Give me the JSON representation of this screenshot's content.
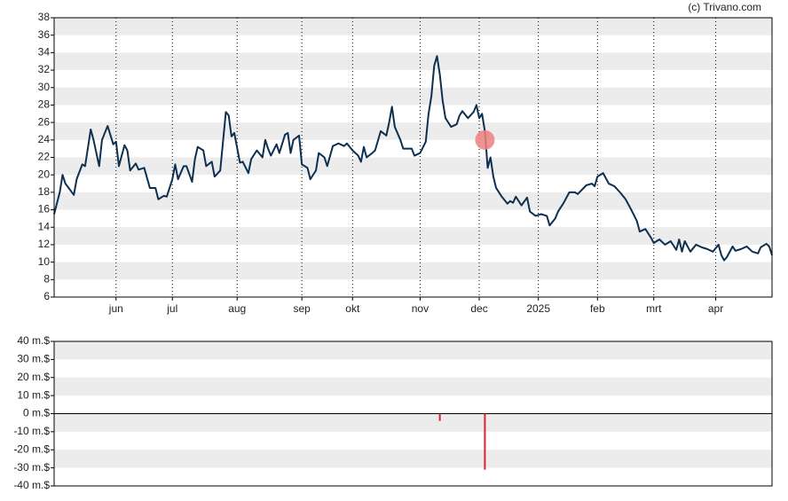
{
  "credit": "(c) Trivano.com",
  "chart_data": [
    {
      "type": "line",
      "grid": "bands",
      "xlim": [
        0,
        255
      ],
      "xticks": [
        {
          "value": 22,
          "label": "jun"
        },
        {
          "value": 42,
          "label": "jul"
        },
        {
          "value": 65,
          "label": "aug"
        },
        {
          "value": 88,
          "label": "sep"
        },
        {
          "value": 106,
          "label": "okt"
        },
        {
          "value": 130,
          "label": "nov"
        },
        {
          "value": 151,
          "label": "dec"
        },
        {
          "value": 172,
          "label": "2025"
        },
        {
          "value": 193,
          "label": "feb"
        },
        {
          "value": 213,
          "label": "mrt"
        },
        {
          "value": 235,
          "label": "apr"
        }
      ],
      "ylim": [
        6,
        38
      ],
      "yticks": [
        6,
        8,
        10,
        12,
        14,
        16,
        18,
        20,
        22,
        24,
        26,
        28,
        30,
        32,
        34,
        36,
        38
      ],
      "series": [
        {
          "color": "#0d3050",
          "x": [
            0,
            2,
            3,
            4,
            7,
            8,
            10,
            11,
            13,
            14,
            16,
            17,
            19,
            21,
            22,
            23,
            25,
            26,
            27,
            29,
            30,
            32,
            34,
            36,
            37,
            39,
            40,
            42,
            43,
            44,
            46,
            47,
            49,
            50,
            51,
            53,
            54,
            56,
            57,
            59,
            61,
            62,
            63,
            64,
            66,
            67,
            69,
            70,
            72,
            74,
            75,
            76,
            77,
            79,
            80,
            82,
            83,
            84,
            85,
            87,
            88,
            90,
            91,
            93,
            94,
            96,
            97,
            99,
            101,
            103,
            104,
            106,
            108,
            109,
            110,
            111,
            113,
            114,
            116,
            118,
            119,
            120,
            121,
            123,
            124,
            127,
            128,
            130,
            132,
            133,
            134,
            135,
            136,
            137,
            138,
            139,
            140,
            141,
            143,
            144,
            145,
            147,
            149,
            150,
            151,
            152,
            153,
            154,
            155,
            156,
            157,
            159,
            161,
            162,
            163,
            164,
            166,
            168,
            169,
            171,
            173,
            175,
            176,
            178,
            179,
            181,
            183,
            185,
            186,
            189,
            191,
            192,
            193,
            195,
            197,
            199,
            201,
            203,
            205,
            207,
            208,
            210,
            212,
            213,
            215,
            217,
            219,
            221,
            222,
            223,
            224,
            226,
            228,
            230,
            232,
            234,
            236,
            237,
            238,
            239,
            241,
            242,
            244,
            246,
            248,
            250,
            251,
            253,
            254,
            255
          ],
          "values": [
            15.5,
            18,
            20,
            19,
            17.7,
            19.5,
            21.2,
            21,
            25.2,
            24,
            21,
            24,
            25.6,
            23.5,
            23.8,
            21,
            23.4,
            22.8,
            20.5,
            21.3,
            20.6,
            20.8,
            18.5,
            18.5,
            17.2,
            17.6,
            17.5,
            19.5,
            21.2,
            19.5,
            21,
            21,
            19.2,
            21.8,
            23.2,
            22.8,
            21,
            21.5,
            19.8,
            20.5,
            27.2,
            26.8,
            24.4,
            24.8,
            21.4,
            21.5,
            20.2,
            21.8,
            22.8,
            22,
            24,
            23,
            22.2,
            23.5,
            22.5,
            24.6,
            24.8,
            22.5,
            24,
            24.5,
            21.2,
            20.8,
            19.5,
            20.5,
            22.5,
            22,
            21,
            23.3,
            23.6,
            23.3,
            23.6,
            22.8,
            22.2,
            21.5,
            23.2,
            22,
            22.5,
            22.8,
            25,
            24.5,
            26,
            27.8,
            25.5,
            24,
            23,
            23,
            22.2,
            22.5,
            23.8,
            27,
            29,
            32.5,
            33.6,
            31.5,
            28.5,
            26.5,
            26,
            25.5,
            25.8,
            26.8,
            27.3,
            26.5,
            27.2,
            28,
            26.5,
            27,
            25,
            20.8,
            22,
            19.8,
            18.5,
            17.5,
            16.7,
            17,
            16.8,
            17.5,
            16.5,
            17.4,
            15.8,
            15.3,
            15.5,
            15.3,
            14.2,
            15,
            15.8,
            16.8,
            18,
            18,
            17.8,
            18.8,
            19,
            18.7,
            19.8,
            20.2,
            19,
            18.7,
            18,
            17.2,
            16,
            14.7,
            13.5,
            13.8,
            12.8,
            12.2,
            12.6,
            12,
            12.4,
            11.4,
            12.6,
            11.2,
            12.4,
            11.2,
            12,
            11.7,
            11.5,
            11.2,
            12,
            10.8,
            10.2,
            10.6,
            11.8,
            11.3,
            11.5,
            11.8,
            11.2,
            11,
            11.7,
            12.1,
            11.8,
            10.8
          ]
        }
      ],
      "marker": {
        "x": 153,
        "y": 24,
        "color": "#f08080"
      }
    },
    {
      "type": "bar",
      "grid": "bands",
      "xlim": [
        0,
        255
      ],
      "ylim": [
        -40,
        40
      ],
      "yticks": [
        {
          "value": -40,
          "label": "-40 m.$"
        },
        {
          "value": -30,
          "label": "-30 m.$"
        },
        {
          "value": -20,
          "label": "-20 m.$"
        },
        {
          "value": -10,
          "label": "-10 m.$"
        },
        {
          "value": 0,
          "label": "0 m.$"
        },
        {
          "value": 10,
          "label": "10 m.$"
        },
        {
          "value": 20,
          "label": "20 m.$"
        },
        {
          "value": 30,
          "label": "30 m.$"
        },
        {
          "value": 40,
          "label": "40 m.$"
        }
      ],
      "x": [
        137,
        153
      ],
      "values": [
        -4,
        -31
      ],
      "color": "#e0202a"
    }
  ]
}
